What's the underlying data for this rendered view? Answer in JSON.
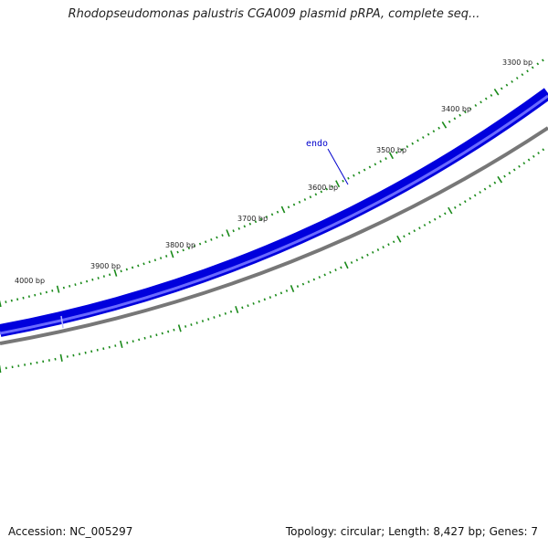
{
  "map": {
    "title": "Rhodopseudomonas palustris CGA009 plasmid pRPA, complete seq...",
    "footer": {
      "accession": "Accession: NC_005297",
      "summary": "Topology: circular; Length: 8,427 bp; Genes: 7"
    },
    "features": [
      {
        "name": "endo",
        "color": "#0000cc"
      }
    ],
    "ruler_labels": [
      "3300 bp",
      "3400 bp",
      "3500 bp",
      "3600 bp",
      "3700 bp",
      "3800 bp",
      "3900 bp",
      "4000 bp"
    ],
    "colors": {
      "gene_strand": "#0000dd",
      "gene_strand_light": "#6a6aff",
      "backbone": "#777777",
      "ticks": "#1a8a1a",
      "label": "#222222"
    }
  }
}
